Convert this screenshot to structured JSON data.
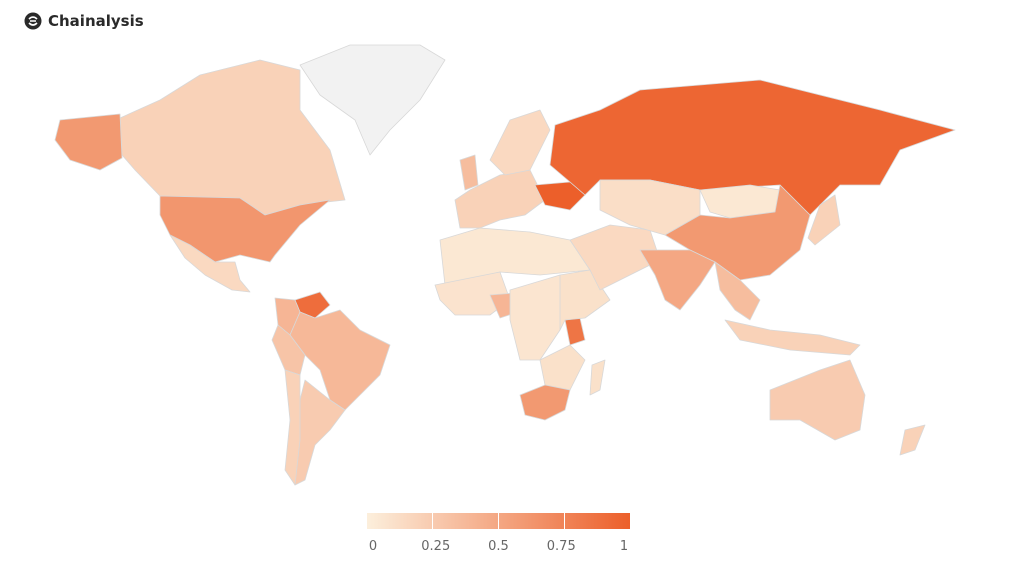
{
  "brand": {
    "name": "Chainalysis",
    "icon": "chainalysis-logo-icon"
  },
  "legend": {
    "ticks": [
      "0",
      "0.25",
      "0.5",
      "0.75",
      "1"
    ],
    "color_min": "#fcefdc",
    "color_max": "#ec5f2a",
    "no_data_color": "#f2f2f2"
  },
  "map_data": {
    "scale": [
      0,
      1
    ],
    "regions": [
      {
        "id": "canada",
        "value": 0.2
      },
      {
        "id": "alaska-usa",
        "value": 0.6
      },
      {
        "id": "usa",
        "value": 0.62
      },
      {
        "id": "mexico",
        "value": 0.15
      },
      {
        "id": "greenland",
        "value": null
      },
      {
        "id": "venezuela",
        "value": 0.9
      },
      {
        "id": "colombia",
        "value": 0.4
      },
      {
        "id": "brazil",
        "value": 0.38
      },
      {
        "id": "peru",
        "value": 0.3
      },
      {
        "id": "argentina",
        "value": 0.25
      },
      {
        "id": "chile",
        "value": 0.2
      },
      {
        "id": "europe-west",
        "value": 0.2
      },
      {
        "id": "uk",
        "value": 0.35
      },
      {
        "id": "scandinavia",
        "value": 0.15
      },
      {
        "id": "ukraine",
        "value": 1.0
      },
      {
        "id": "russia",
        "value": 0.95
      },
      {
        "id": "north-africa",
        "value": 0.05
      },
      {
        "id": "west-africa",
        "value": 0.08
      },
      {
        "id": "nigeria",
        "value": 0.4
      },
      {
        "id": "central-africa",
        "value": 0.07
      },
      {
        "id": "kenya",
        "value": 0.85
      },
      {
        "id": "east-africa",
        "value": 0.1
      },
      {
        "id": "south-africa",
        "value": 0.6
      },
      {
        "id": "madagascar",
        "value": 0.1
      },
      {
        "id": "middle-east",
        "value": 0.15
      },
      {
        "id": "central-asia",
        "value": 0.12
      },
      {
        "id": "mongolia",
        "value": 0.05
      },
      {
        "id": "china",
        "value": 0.6
      },
      {
        "id": "india",
        "value": 0.5
      },
      {
        "id": "southeast-asia",
        "value": 0.35
      },
      {
        "id": "japan",
        "value": 0.2
      },
      {
        "id": "indonesia",
        "value": 0.2
      },
      {
        "id": "australia",
        "value": 0.25
      },
      {
        "id": "new-zealand",
        "value": 0.2
      }
    ]
  }
}
